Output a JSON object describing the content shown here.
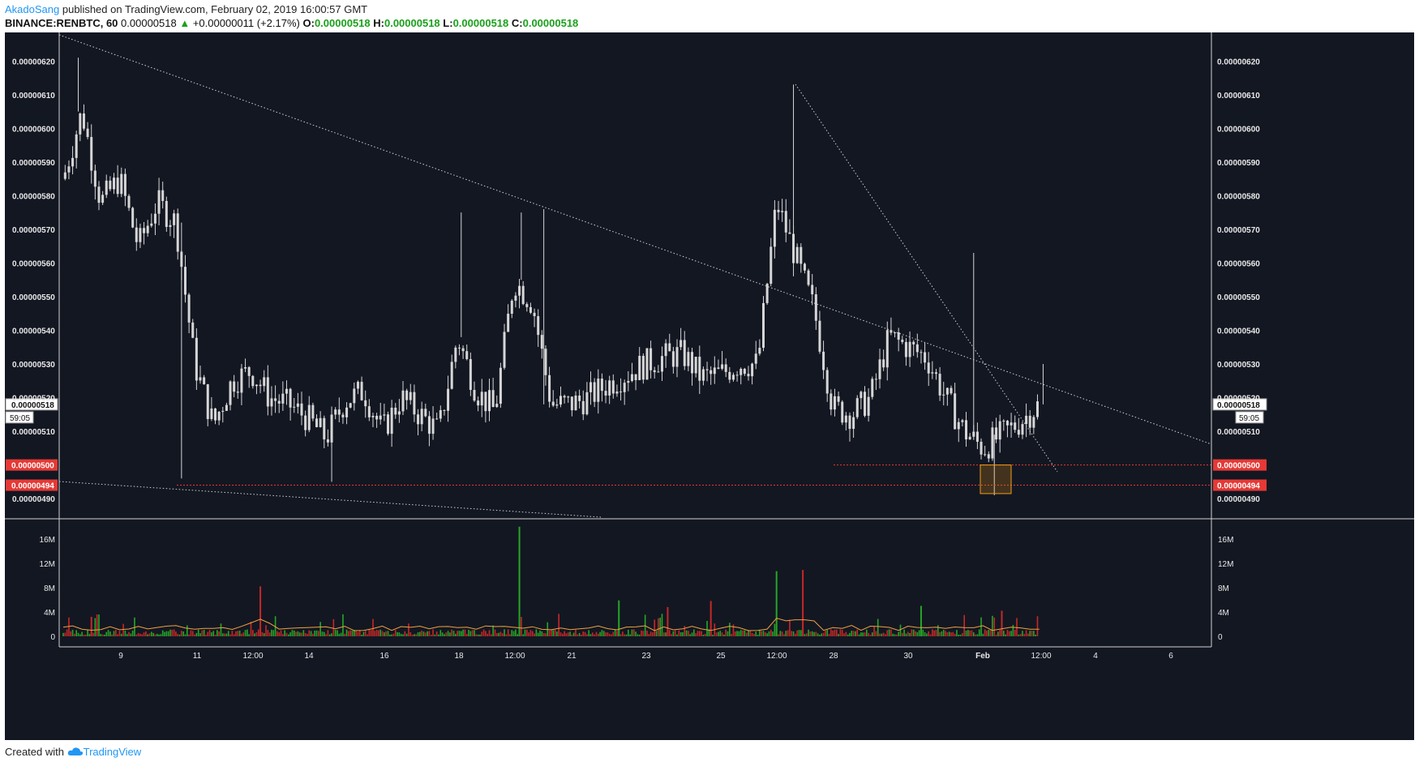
{
  "header": {
    "author": "AkadoSang",
    "published_text": "published on TradingView.com, February 02, 2019 16:00:57 GMT",
    "symbol": "BINANCE:RENBTC, 60",
    "last_price": "0.00000518",
    "change": "+0.00000011 (+2.17%)",
    "open_label": "O:",
    "open": "0.00000518",
    "high_label": "H:",
    "high": "0.00000518",
    "low_label": "L:",
    "low": "0.00000518",
    "close_label": "C:",
    "close": "0.00000518"
  },
  "footer": {
    "created_with": "Created with",
    "brand": "TradingView"
  },
  "colors": {
    "background": "#131722",
    "candle": "#d6d6d6",
    "level_line": "#e53935",
    "volume_up": "#26a626",
    "volume_down": "#c62828",
    "volume_ma": "#f0a040",
    "highlight_box": "#f39c12"
  },
  "chart_data": {
    "type": "candlestick",
    "symbol": "BINANCE:RENBTC",
    "interval": "60",
    "price_axis": {
      "ticks": [
        "0.00000620",
        "0.00000610",
        "0.00000600",
        "0.00000590",
        "0.00000580",
        "0.00000570",
        "0.00000560",
        "0.00000550",
        "0.00000540",
        "0.00000530",
        "0.00000520",
        "0.00000510",
        "0.00000490"
      ],
      "range": [
        4.845e-06,
        6.285e-06
      ]
    },
    "time_axis": {
      "ticks": [
        "9",
        "11",
        "12:00",
        "14",
        "16",
        "18",
        "12:00",
        "21",
        "23",
        "25",
        "12:00",
        "28",
        "30",
        "Feb",
        "12:00",
        "4",
        "6"
      ]
    },
    "price_series_approx": [
      [
        0,
        585
      ],
      [
        1,
        605
      ],
      [
        2,
        578
      ],
      [
        3,
        585
      ],
      [
        4,
        565
      ],
      [
        5,
        578
      ],
      [
        6,
        572
      ],
      [
        7,
        530
      ],
      [
        8,
        512
      ],
      [
        9,
        525
      ],
      [
        10,
        528
      ],
      [
        11,
        520
      ],
      [
        12,
        518
      ],
      [
        13,
        514
      ],
      [
        14,
        508
      ],
      [
        15,
        519
      ],
      [
        16,
        522
      ],
      [
        17,
        510
      ],
      [
        18,
        520
      ],
      [
        19,
        515
      ],
      [
        20,
        510
      ],
      [
        21,
        538
      ],
      [
        22,
        522
      ],
      [
        23,
        516
      ],
      [
        24,
        555
      ],
      [
        25,
        548
      ],
      [
        26,
        518
      ],
      [
        27,
        518
      ],
      [
        28,
        520
      ],
      [
        29,
        524
      ],
      [
        30,
        527
      ],
      [
        31,
        530
      ],
      [
        32,
        532
      ],
      [
        33,
        533
      ],
      [
        34,
        526
      ],
      [
        35,
        527
      ],
      [
        36,
        530
      ],
      [
        37,
        530
      ],
      [
        38,
        578
      ],
      [
        39,
        562
      ],
      [
        40,
        546
      ],
      [
        41,
        517
      ],
      [
        42,
        515
      ],
      [
        43,
        520
      ],
      [
        44,
        538
      ],
      [
        45,
        535
      ],
      [
        46,
        532
      ],
      [
        47,
        520
      ],
      [
        48,
        510
      ],
      [
        49,
        505
      ],
      [
        50,
        509
      ],
      [
        51,
        513
      ],
      [
        52,
        518
      ]
    ],
    "current_price": {
      "value": "0.00000518",
      "countdown": "59:05"
    },
    "levels": [
      {
        "label": "0.00000500",
        "value": 5e-06
      },
      {
        "label": "0.00000494",
        "value": 4.94e-06
      }
    ],
    "volume": {
      "axis_ticks": [
        "16M",
        "12M",
        "8M",
        "4M",
        "0"
      ],
      "range": [
        0,
        18500000
      ],
      "spikes": [
        {
          "x": 1.5,
          "value": 3200000,
          "dir": "down"
        },
        {
          "x": 10.5,
          "value": 8200000,
          "dir": "down"
        },
        {
          "x": 24.3,
          "value": 18000000,
          "dir": "up"
        },
        {
          "x": 29.6,
          "value": 5900000,
          "dir": "up"
        },
        {
          "x": 32.2,
          "value": 4800000,
          "dir": "down"
        },
        {
          "x": 34.5,
          "value": 5800000,
          "dir": "down"
        },
        {
          "x": 38.0,
          "value": 10700000,
          "dir": "up"
        },
        {
          "x": 39.4,
          "value": 10900000,
          "dir": "down"
        },
        {
          "x": 45.7,
          "value": 5000000,
          "dir": "up"
        },
        {
          "x": 50.0,
          "value": 4200000,
          "dir": "down"
        }
      ]
    },
    "trendlines": [
      {
        "name": "upper",
        "style": "dotted"
      },
      {
        "name": "lower",
        "style": "dotted"
      },
      {
        "name": "steep",
        "style": "dotted"
      }
    ]
  }
}
